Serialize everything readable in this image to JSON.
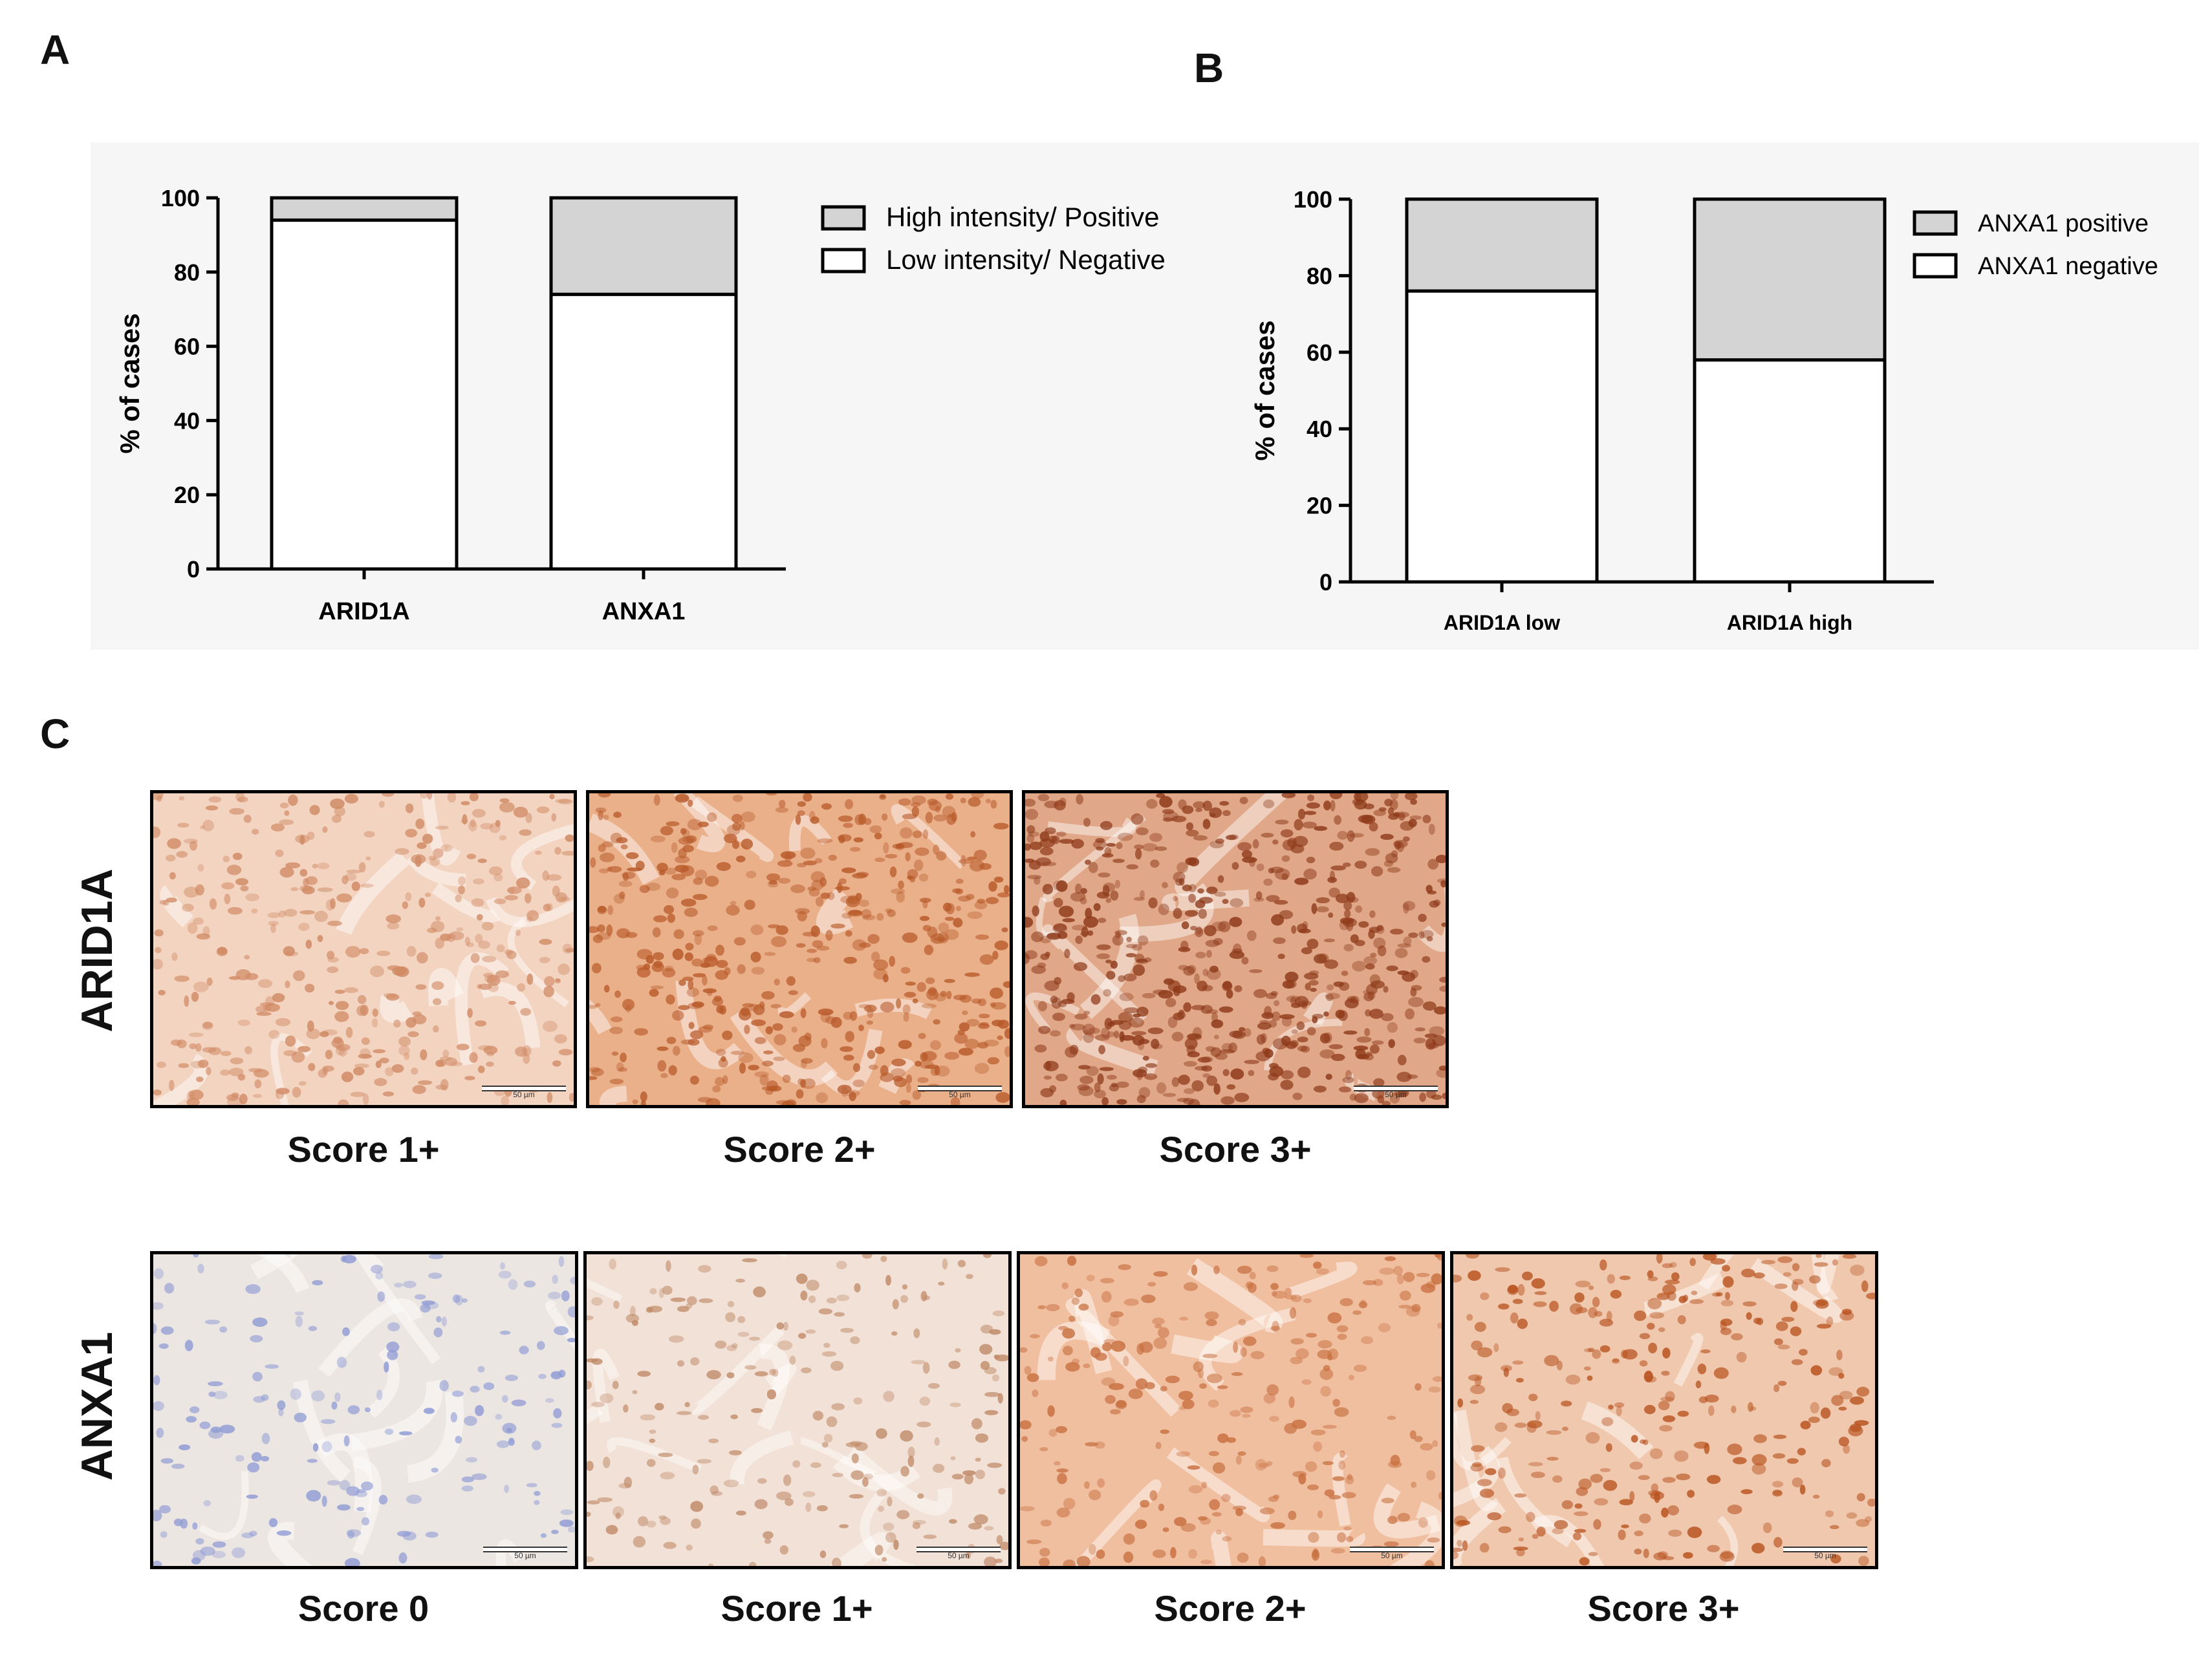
{
  "panels": {
    "a": "A",
    "b": "B",
    "c": "C"
  },
  "colors": {
    "positive": "#d4d4d4",
    "negative": "#ffffff",
    "stroke": "#000000"
  },
  "chart_data": [
    {
      "id": "A",
      "type": "bar",
      "stacked": true,
      "categories": [
        "ARID1A",
        "ANXA1"
      ],
      "series": [
        {
          "name": "Low intensity/ Negative",
          "values": [
            94,
            74
          ]
        },
        {
          "name": "High intensity/ Positive",
          "values": [
            6,
            26
          ]
        }
      ],
      "legend": [
        "High intensity/ Positive",
        "Low intensity/ Negative"
      ],
      "ylabel": "% of cases",
      "ylim": [
        0,
        100
      ],
      "yticks": [
        0,
        20,
        40,
        60,
        80,
        100
      ],
      "legend_position": "right"
    },
    {
      "id": "B",
      "type": "bar",
      "stacked": true,
      "categories": [
        "ARID1A low",
        "ARID1A high"
      ],
      "series": [
        {
          "name": "ANXA1 negative",
          "values": [
            76,
            58
          ]
        },
        {
          "name": "ANXA1 positive",
          "values": [
            24,
            42
          ]
        }
      ],
      "legend": [
        "ANXA1 positive",
        "ANXA1 negative"
      ],
      "ylabel": "% of cases",
      "ylim": [
        0,
        100
      ],
      "yticks": [
        0,
        20,
        40,
        60,
        80,
        100
      ],
      "legend_position": "right"
    }
  ],
  "micrographs": {
    "arid1a": {
      "label": "ARID1A",
      "images": [
        {
          "caption": "Score 1+",
          "tone": "#f3d4c1",
          "dots": "#d08a64"
        },
        {
          "caption": "Score 2+",
          "tone": "#eab08a",
          "dots": "#b85a2a"
        },
        {
          "caption": "Score 3+",
          "tone": "#e0a888",
          "dots": "#8e3a1a"
        }
      ]
    },
    "anxa1": {
      "label": "ANXA1",
      "images": [
        {
          "caption": "Score 0",
          "tone": "#ece6e2",
          "dots": "#8e9ad4"
        },
        {
          "caption": "Score 1+",
          "tone": "#f1e1d6",
          "dots": "#c08a68"
        },
        {
          "caption": "Score 2+",
          "tone": "#f0bfa0",
          "dots": "#c87040"
        },
        {
          "caption": "Score 3+",
          "tone": "#efc8ae",
          "dots": "#b8521e"
        }
      ]
    },
    "scale_label": "50 µm"
  }
}
